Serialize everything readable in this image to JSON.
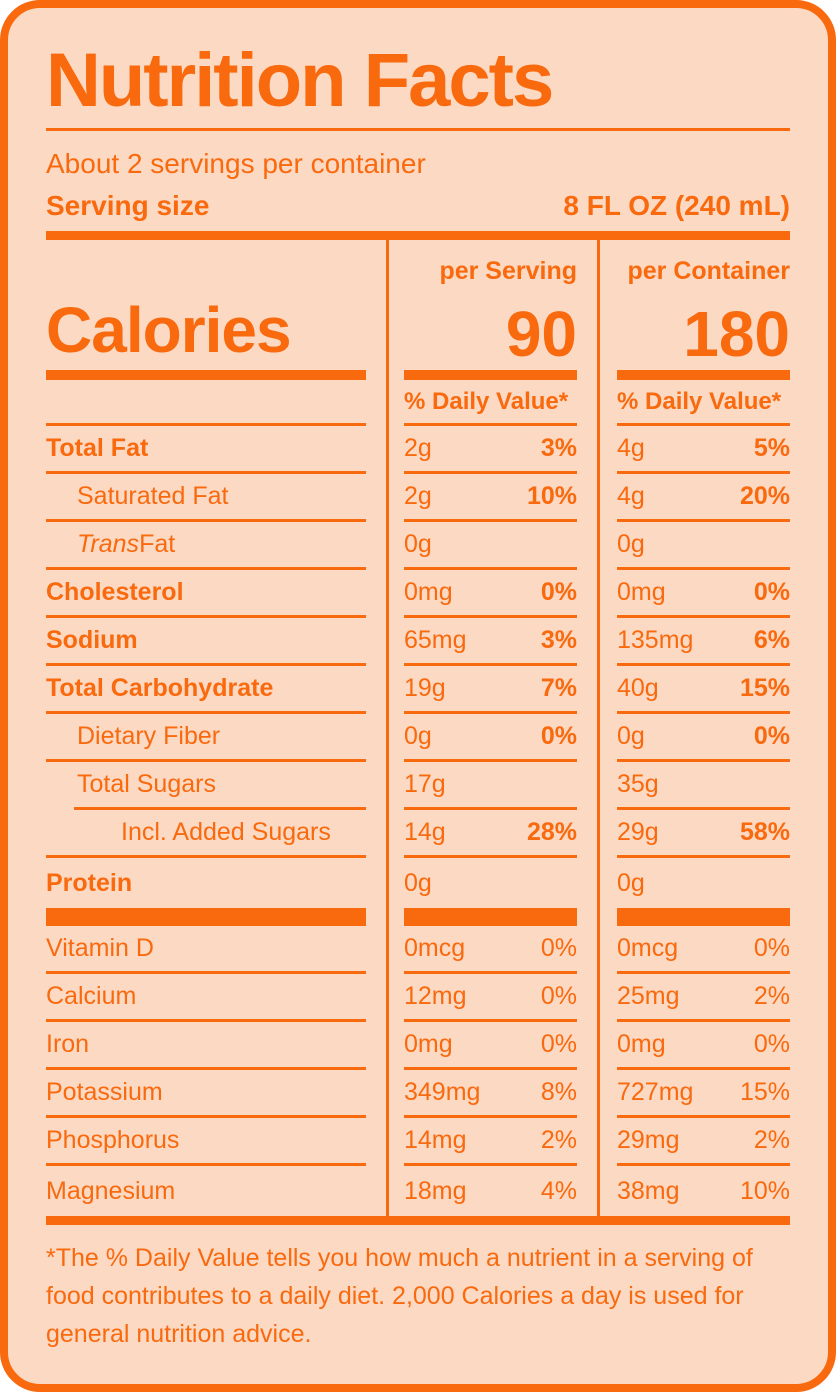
{
  "title": "Nutrition Facts",
  "servings_per_container": "About 2 servings per container",
  "serving_size": {
    "label": "Serving size",
    "value": "8 FL OZ (240 mL)"
  },
  "columns": {
    "serving_header": "per Serving",
    "container_header": "per Container"
  },
  "calories": {
    "label": "Calories",
    "per_serving": "90",
    "per_container": "180"
  },
  "daily_value_header": "% Daily Value*",
  "nutrients": [
    {
      "label": "Total Fat",
      "bold": true,
      "serving": {
        "amount": "2g",
        "dv": "3%"
      },
      "container": {
        "amount": "4g",
        "dv": "5%"
      }
    },
    {
      "label": "Saturated Fat",
      "indent": 1,
      "serving": {
        "amount": "2g",
        "dv": "10%"
      },
      "container": {
        "amount": "4g",
        "dv": "20%"
      }
    },
    {
      "label_italic": "Trans",
      "label": " Fat",
      "indent": 1,
      "serving": {
        "amount": "0g",
        "dv": ""
      },
      "container": {
        "amount": "0g",
        "dv": ""
      }
    },
    {
      "label": "Cholesterol",
      "bold": true,
      "serving": {
        "amount": "0mg",
        "dv": "0%"
      },
      "container": {
        "amount": "0mg",
        "dv": "0%"
      }
    },
    {
      "label": "Sodium",
      "bold": true,
      "serving": {
        "amount": "65mg",
        "dv": "3%"
      },
      "container": {
        "amount": "135mg",
        "dv": "6%"
      }
    },
    {
      "label": "Total Carbohydrate",
      "bold": true,
      "serving": {
        "amount": "19g",
        "dv": "7%"
      },
      "container": {
        "amount": "40g",
        "dv": "15%"
      }
    },
    {
      "label": "Dietary Fiber",
      "indent": 1,
      "serving": {
        "amount": "0g",
        "dv": "0%"
      },
      "container": {
        "amount": "0g",
        "dv": "0%"
      }
    },
    {
      "label": "Total Sugars",
      "indent": 1,
      "line_indent": true,
      "serving": {
        "amount": "17g",
        "dv": ""
      },
      "container": {
        "amount": "35g",
        "dv": ""
      }
    },
    {
      "label": "Incl. Added Sugars",
      "indent": 2,
      "serving": {
        "amount": "14g",
        "dv": "28%"
      },
      "container": {
        "amount": "29g",
        "dv": "58%"
      }
    },
    {
      "label": "Protein",
      "bold": true,
      "no_line": true,
      "serving": {
        "amount": "0g",
        "dv": ""
      },
      "container": {
        "amount": "0g",
        "dv": ""
      }
    }
  ],
  "minerals": [
    {
      "label": "Vitamin D",
      "serving": {
        "amount": "0mcg",
        "dv": "0%"
      },
      "container": {
        "amount": "0mcg",
        "dv": "0%"
      }
    },
    {
      "label": "Calcium",
      "serving": {
        "amount": "12mg",
        "dv": "0%"
      },
      "container": {
        "amount": "25mg",
        "dv": "2%"
      }
    },
    {
      "label": "Iron",
      "serving": {
        "amount": "0mg",
        "dv": "0%"
      },
      "container": {
        "amount": "0mg",
        "dv": "0%"
      }
    },
    {
      "label": "Potassium",
      "serving": {
        "amount": "349mg",
        "dv": "8%"
      },
      "container": {
        "amount": "727mg",
        "dv": "15%"
      }
    },
    {
      "label": "Phosphorus",
      "serving": {
        "amount": "14mg",
        "dv": "2%"
      },
      "container": {
        "amount": "29mg",
        "dv": "2%"
      }
    },
    {
      "label": "Magnesium",
      "no_line": true,
      "serving": {
        "amount": "18mg",
        "dv": "4%"
      },
      "container": {
        "amount": "38mg",
        "dv": "10%"
      }
    }
  ],
  "footnote": "*The % Daily Value tells you how much a nutrient in a serving of food contributes to a daily diet. 2,000 Calories a day is used for general nutrition advice.",
  "colors": {
    "accent": "#F9690E",
    "background": "#FCD9C3"
  }
}
